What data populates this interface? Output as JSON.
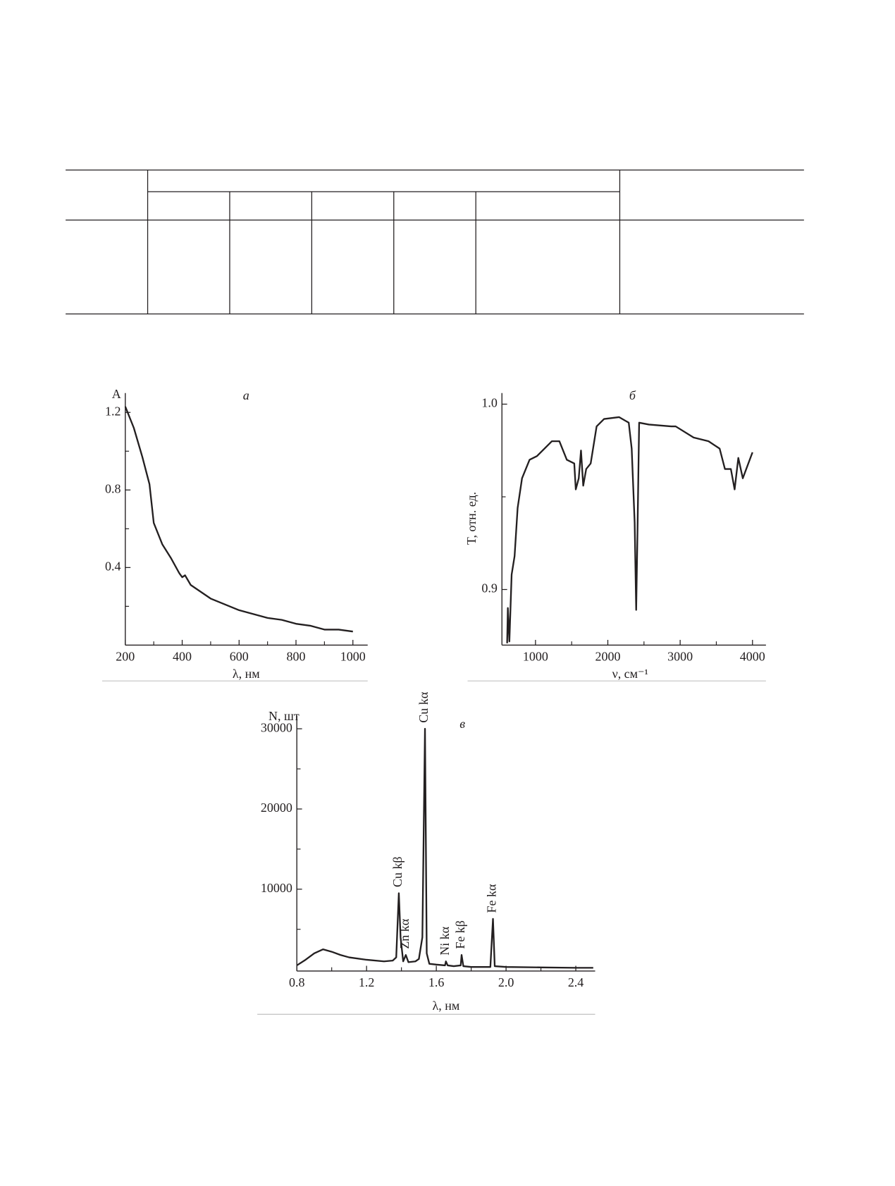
{
  "chart_data": [
    {
      "type": "line",
      "panel": "а",
      "ylabel": "A",
      "xlabel": "λ, нм",
      "color": "#231f20",
      "x": [
        200,
        230,
        260,
        285,
        300,
        330,
        360,
        390,
        400,
        410,
        430,
        470,
        500,
        550,
        600,
        650,
        700,
        750,
        800,
        850,
        900,
        950,
        1000
      ],
      "values": [
        1.23,
        1.12,
        0.97,
        0.83,
        0.63,
        0.52,
        0.45,
        0.37,
        0.35,
        0.36,
        0.31,
        0.27,
        0.24,
        0.21,
        0.18,
        0.16,
        0.14,
        0.13,
        0.11,
        0.1,
        0.08,
        0.08,
        0.07
      ],
      "xlim": [
        200,
        1052
      ],
      "ylim": [
        0,
        1.3
      ],
      "xticks": [
        200,
        400,
        600,
        800,
        1000
      ],
      "xticks_minor": [
        300,
        500,
        700,
        900
      ],
      "yticks": [
        0.4,
        0.8,
        1.2
      ],
      "yticks_minor": [
        0.2,
        0.6,
        1.0
      ]
    },
    {
      "type": "line",
      "panel": "б",
      "ylabel": "T, отн. ед.",
      "xlabel": "ν, см⁻¹",
      "color": "#231f20",
      "x": [
        608,
        618,
        639,
        670,
        711,
        753,
        814,
        918,
        1021,
        1227,
        1330,
        1433,
        1536,
        1557,
        1598,
        1629,
        1660,
        1701,
        1763,
        1845,
        1948,
        2155,
        2289,
        2330,
        2371,
        2392,
        2412,
        2433,
        2567,
        2876,
        2938,
        3186,
        3392,
        3546,
        3619,
        3701,
        3753,
        3804,
        3866,
        4000
      ],
      "values": [
        0.871,
        0.89,
        0.872,
        0.908,
        0.918,
        0.944,
        0.96,
        0.97,
        0.972,
        0.98,
        0.98,
        0.97,
        0.968,
        0.954,
        0.96,
        0.975,
        0.956,
        0.965,
        0.968,
        0.988,
        0.992,
        0.993,
        0.99,
        0.976,
        0.936,
        0.889,
        0.936,
        0.99,
        0.989,
        0.988,
        0.988,
        0.982,
        0.98,
        0.976,
        0.965,
        0.965,
        0.954,
        0.971,
        0.96,
        0.974
      ],
      "xlim": [
        536,
        4186
      ],
      "ylim": [
        0.87,
        1.006
      ],
      "xticks": [
        1000,
        2000,
        3000,
        4000
      ],
      "xticks_minor": [
        1500,
        2500,
        3500
      ],
      "yticks": [
        0.9,
        {
          "value": 1,
          "label": "1.0"
        }
      ],
      "yticks_minor": [
        0.95
      ]
    },
    {
      "type": "line",
      "panel": "в",
      "ylabel": "N, шт",
      "xlabel": "λ, нм",
      "color": "#231f20",
      "x": [
        0.8,
        0.85,
        0.9,
        0.95,
        1.0,
        1.05,
        1.1,
        1.2,
        1.3,
        1.35,
        1.37,
        1.385,
        1.395,
        1.41,
        1.425,
        1.44,
        1.48,
        1.5,
        1.52,
        1.535,
        1.545,
        1.56,
        1.6,
        1.65,
        1.655,
        1.665,
        1.7,
        1.74,
        1.745,
        1.755,
        1.8,
        1.91,
        1.925,
        1.935,
        2.0,
        2.2,
        2.4,
        2.5
      ],
      "values": [
        500,
        1200,
        2000,
        2500,
        2200,
        1800,
        1500,
        1200,
        1000,
        1100,
        1500,
        9500,
        4000,
        1000,
        1800,
        900,
        1000,
        1300,
        4000,
        30000,
        2000,
        700,
        600,
        500,
        1000,
        500,
        400,
        500,
        1800,
        400,
        300,
        300,
        6300,
        400,
        300,
        250,
        200,
        200
      ],
      "xlim": [
        0.8,
        2.511
      ],
      "ylim": [
        -200,
        31600
      ],
      "xticks": [
        0.8,
        1.2,
        1.6,
        {
          "value": 2,
          "label": "2.0"
        },
        2.4
      ],
      "xticks_minor": [
        1.0,
        1.4,
        1.8,
        2.2
      ],
      "yticks": [
        10000,
        20000,
        30000
      ],
      "yticks_minor": [
        5000,
        15000,
        25000
      ],
      "annotations": [
        {
          "text": "Cu kβ",
          "x": 1.385
        },
        {
          "text": "Zn kα",
          "x": 1.425
        },
        {
          "text": "Cu kα",
          "x": 1.535
        },
        {
          "text": "Ni kα",
          "x": 1.655
        },
        {
          "text": "Fe kβ",
          "x": 1.745
        },
        {
          "text": "Fe kα",
          "x": 1.925
        }
      ]
    }
  ]
}
